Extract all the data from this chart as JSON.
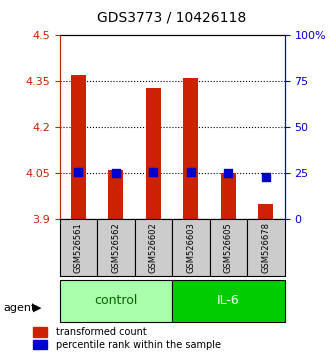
{
  "title": "GDS3773 / 10426118",
  "samples": [
    "GSM526561",
    "GSM526562",
    "GSM526602",
    "GSM526603",
    "GSM526605",
    "GSM526678"
  ],
  "transformed_counts": [
    4.37,
    4.06,
    4.33,
    4.36,
    4.05,
    3.95
  ],
  "percentile_ranks": [
    26,
    25,
    26,
    26,
    25,
    23
  ],
  "ylim_left": [
    3.9,
    4.5
  ],
  "ylim_right": [
    0,
    100
  ],
  "left_ticks": [
    3.9,
    4.05,
    4.2,
    4.35,
    4.5
  ],
  "right_ticks": [
    0,
    25,
    50,
    75,
    100
  ],
  "right_tick_labels": [
    "0",
    "25",
    "50",
    "75",
    "100%"
  ],
  "bar_color": "#cc2200",
  "dot_color": "#0000cc",
  "control_color": "#aaffaa",
  "il6_color": "#00cc00",
  "sample_box_color": "#cccccc",
  "left_axis_color": "#cc2200",
  "right_axis_color": "#0000cc",
  "bar_bottom": 3.9,
  "dot_size": 30
}
